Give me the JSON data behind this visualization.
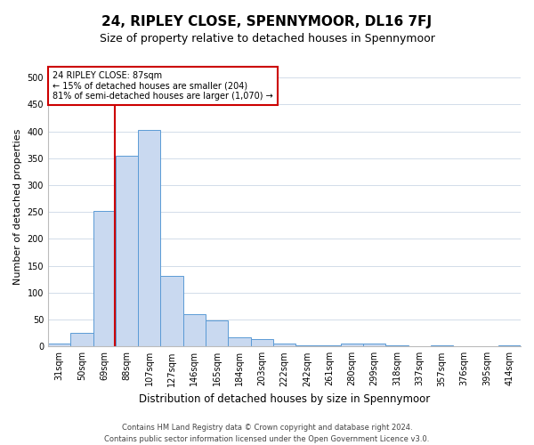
{
  "title": "24, RIPLEY CLOSE, SPENNYMOOR, DL16 7FJ",
  "subtitle": "Size of property relative to detached houses in Spennymoor",
  "xlabel": "Distribution of detached houses by size in Spennymoor",
  "ylabel": "Number of detached properties",
  "footer": "Contains HM Land Registry data © Crown copyright and database right 2024.\nContains public sector information licensed under the Open Government Licence v3.0.",
  "categories": [
    "31sqm",
    "50sqm",
    "69sqm",
    "88sqm",
    "107sqm",
    "127sqm",
    "146sqm",
    "165sqm",
    "184sqm",
    "203sqm",
    "222sqm",
    "242sqm",
    "261sqm",
    "280sqm",
    "299sqm",
    "318sqm",
    "337sqm",
    "357sqm",
    "376sqm",
    "395sqm",
    "414sqm"
  ],
  "values": [
    5,
    25,
    252,
    355,
    403,
    132,
    60,
    49,
    17,
    14,
    5,
    2,
    2,
    5,
    5,
    2,
    1,
    2,
    0,
    0,
    2
  ],
  "bar_color": "#c9d9f0",
  "bar_edge_color": "#5b9bd5",
  "vline_color": "#cc0000",
  "vline_pos": 2.47,
  "annotation_text": "24 RIPLEY CLOSE: 87sqm\n← 15% of detached houses are smaller (204)\n81% of semi-detached houses are larger (1,070) →",
  "annotation_box_color": "#ffffff",
  "annotation_box_edge_color": "#cc0000",
  "ylim": [
    0,
    520
  ],
  "title_fontsize": 11,
  "subtitle_fontsize": 9,
  "tick_fontsize": 7,
  "ylabel_fontsize": 8,
  "xlabel_fontsize": 8.5,
  "annotation_fontsize": 7,
  "footer_fontsize": 6,
  "background_color": "#ffffff",
  "grid_color": "#c0cfe0"
}
